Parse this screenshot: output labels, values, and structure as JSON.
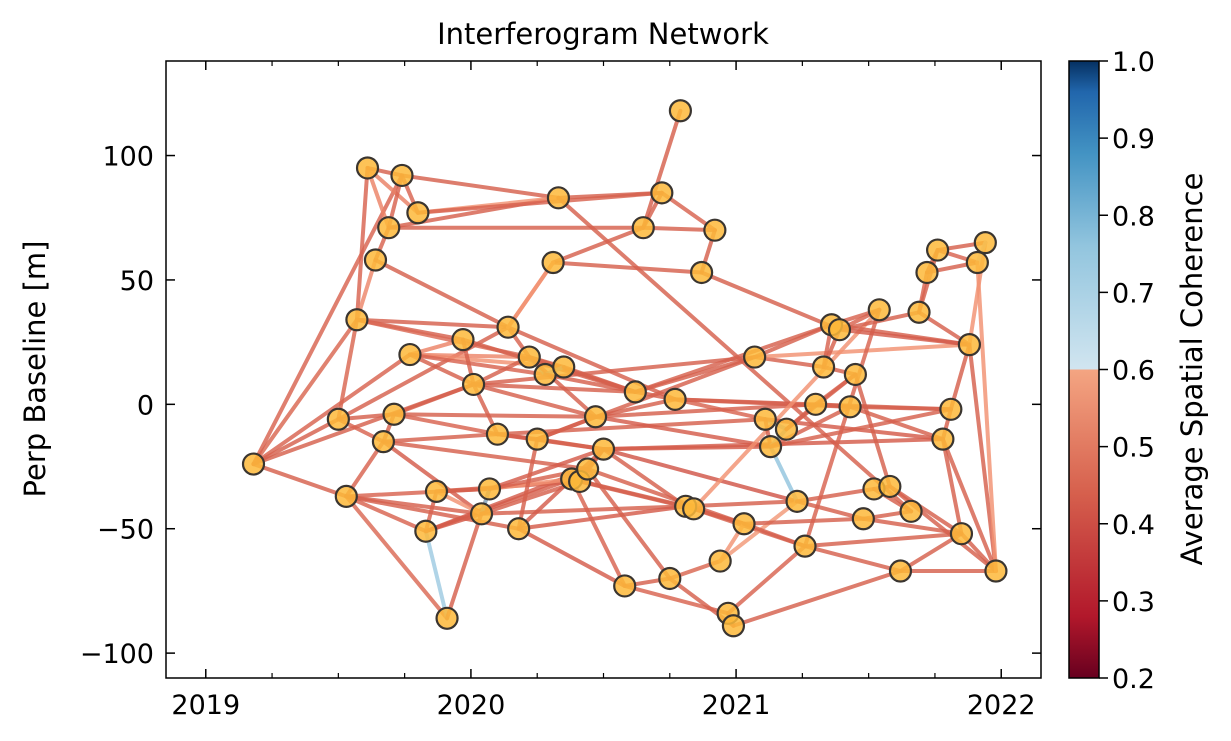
{
  "chart_data": {
    "type": "scatter",
    "title": "Interferogram Network",
    "xlabel": "",
    "ylabel": "Perp Baseline [m]",
    "xlim": [
      2018.85,
      2022.15
    ],
    "ylim": [
      -110,
      138
    ],
    "xticks": [
      2019,
      2020,
      2021,
      2022
    ],
    "xtick_labels": [
      "2019",
      "2020",
      "2021",
      "2022"
    ],
    "yticks": [
      -100,
      -50,
      0,
      50,
      100
    ],
    "ytick_labels": [
      "−100",
      "−50",
      "0",
      "50",
      "100"
    ],
    "grid": false,
    "colorbar": {
      "label": "Average Spatial Coherence",
      "range": [
        0.2,
        1.0
      ],
      "ticks": [
        0.2,
        0.3,
        0.4,
        0.5,
        0.6,
        0.7,
        0.8,
        0.9,
        1.0
      ],
      "tick_labels": [
        "0.2",
        "0.3",
        "0.4",
        "0.5",
        "0.6",
        "0.7",
        "0.8",
        "0.9",
        "1.0"
      ],
      "colormap": "RdBu"
    },
    "marker_color": "#fdb93a",
    "marker_edge_color": "#3a3530",
    "acquisitions": [
      {
        "date": 2019.18,
        "bperp": -24
      },
      {
        "date": 2019.5,
        "bperp": -6
      },
      {
        "date": 2019.53,
        "bperp": -37
      },
      {
        "date": 2019.57,
        "bperp": 34
      },
      {
        "date": 2019.61,
        "bperp": 95
      },
      {
        "date": 2019.64,
        "bperp": 58
      },
      {
        "date": 2019.67,
        "bperp": -15
      },
      {
        "date": 2019.69,
        "bperp": 71
      },
      {
        "date": 2019.71,
        "bperp": -4
      },
      {
        "date": 2019.74,
        "bperp": 92
      },
      {
        "date": 2019.77,
        "bperp": 20
      },
      {
        "date": 2019.8,
        "bperp": 77
      },
      {
        "date": 2019.83,
        "bperp": -51
      },
      {
        "date": 2019.87,
        "bperp": -35
      },
      {
        "date": 2019.91,
        "bperp": -86
      },
      {
        "date": 2019.97,
        "bperp": 26
      },
      {
        "date": 2020.01,
        "bperp": 8
      },
      {
        "date": 2020.04,
        "bperp": -44
      },
      {
        "date": 2020.07,
        "bperp": -34
      },
      {
        "date": 2020.1,
        "bperp": -12
      },
      {
        "date": 2020.14,
        "bperp": 31
      },
      {
        "date": 2020.18,
        "bperp": -50
      },
      {
        "date": 2020.22,
        "bperp": 19
      },
      {
        "date": 2020.25,
        "bperp": -14
      },
      {
        "date": 2020.28,
        "bperp": 12
      },
      {
        "date": 2020.31,
        "bperp": 57
      },
      {
        "date": 2020.33,
        "bperp": 83
      },
      {
        "date": 2020.35,
        "bperp": 15
      },
      {
        "date": 2020.38,
        "bperp": -30
      },
      {
        "date": 2020.41,
        "bperp": -31
      },
      {
        "date": 2020.44,
        "bperp": -26
      },
      {
        "date": 2020.47,
        "bperp": -5
      },
      {
        "date": 2020.5,
        "bperp": -18
      },
      {
        "date": 2020.58,
        "bperp": -73
      },
      {
        "date": 2020.62,
        "bperp": 5
      },
      {
        "date": 2020.65,
        "bperp": 71
      },
      {
        "date": 2020.72,
        "bperp": 85
      },
      {
        "date": 2020.75,
        "bperp": -70
      },
      {
        "date": 2020.77,
        "bperp": 2
      },
      {
        "date": 2020.79,
        "bperp": 118
      },
      {
        "date": 2020.81,
        "bperp": -41
      },
      {
        "date": 2020.84,
        "bperp": -42
      },
      {
        "date": 2020.87,
        "bperp": 53
      },
      {
        "date": 2020.92,
        "bperp": 70
      },
      {
        "date": 2020.94,
        "bperp": -63
      },
      {
        "date": 2020.97,
        "bperp": -84
      },
      {
        "date": 2020.99,
        "bperp": -89
      },
      {
        "date": 2021.03,
        "bperp": -48
      },
      {
        "date": 2021.07,
        "bperp": 19
      },
      {
        "date": 2021.11,
        "bperp": -6
      },
      {
        "date": 2021.13,
        "bperp": -17
      },
      {
        "date": 2021.19,
        "bperp": -10
      },
      {
        "date": 2021.23,
        "bperp": -39
      },
      {
        "date": 2021.26,
        "bperp": -57
      },
      {
        "date": 2021.3,
        "bperp": 0
      },
      {
        "date": 2021.33,
        "bperp": 15
      },
      {
        "date": 2021.36,
        "bperp": 32
      },
      {
        "date": 2021.39,
        "bperp": 30
      },
      {
        "date": 2021.43,
        "bperp": -1
      },
      {
        "date": 2021.45,
        "bperp": 12
      },
      {
        "date": 2021.48,
        "bperp": -46
      },
      {
        "date": 2021.52,
        "bperp": -34
      },
      {
        "date": 2021.54,
        "bperp": 38
      },
      {
        "date": 2021.58,
        "bperp": -33
      },
      {
        "date": 2021.62,
        "bperp": -67
      },
      {
        "date": 2021.66,
        "bperp": -43
      },
      {
        "date": 2021.69,
        "bperp": 37
      },
      {
        "date": 2021.72,
        "bperp": 53
      },
      {
        "date": 2021.76,
        "bperp": 62
      },
      {
        "date": 2021.78,
        "bperp": -14
      },
      {
        "date": 2021.81,
        "bperp": -2
      },
      {
        "date": 2021.85,
        "bperp": -52
      },
      {
        "date": 2021.88,
        "bperp": 24
      },
      {
        "date": 2021.91,
        "bperp": 57
      },
      {
        "date": 2021.94,
        "bperp": 65
      },
      {
        "date": 2021.98,
        "bperp": -67
      }
    ],
    "pairs": [
      [
        0,
        1,
        0.45
      ],
      [
        0,
        2,
        0.45
      ],
      [
        0,
        3,
        0.47
      ],
      [
        0,
        9,
        0.46
      ],
      [
        0,
        10,
        0.46
      ],
      [
        0,
        16,
        0.45
      ],
      [
        1,
        3,
        0.47
      ],
      [
        1,
        6,
        0.46
      ],
      [
        1,
        8,
        0.45
      ],
      [
        1,
        20,
        0.45
      ],
      [
        2,
        6,
        0.46
      ],
      [
        2,
        12,
        0.46
      ],
      [
        2,
        14,
        0.48
      ],
      [
        2,
        17,
        0.45
      ],
      [
        2,
        18,
        0.46
      ],
      [
        2,
        21,
        0.45
      ],
      [
        3,
        4,
        0.46
      ],
      [
        3,
        5,
        0.58
      ],
      [
        3,
        15,
        0.45
      ],
      [
        3,
        20,
        0.45
      ],
      [
        3,
        22,
        0.48
      ],
      [
        4,
        7,
        0.57
      ],
      [
        4,
        11,
        0.56
      ],
      [
        4,
        9,
        0.45
      ],
      [
        5,
        7,
        0.46
      ],
      [
        5,
        20,
        0.45
      ],
      [
        6,
        8,
        0.45
      ],
      [
        6,
        19,
        0.45
      ],
      [
        6,
        17,
        0.44
      ],
      [
        6,
        30,
        0.45
      ],
      [
        7,
        26,
        0.45
      ],
      [
        7,
        9,
        0.46
      ],
      [
        7,
        35,
        0.45
      ],
      [
        8,
        16,
        0.45
      ],
      [
        8,
        19,
        0.46
      ],
      [
        8,
        31,
        0.45
      ],
      [
        9,
        11,
        0.46
      ],
      [
        9,
        26,
        0.45
      ],
      [
        10,
        15,
        0.57
      ],
      [
        10,
        27,
        0.62
      ],
      [
        10,
        22,
        0.58
      ],
      [
        10,
        16,
        0.45
      ],
      [
        10,
        24,
        0.46
      ],
      [
        11,
        26,
        0.63
      ],
      [
        11,
        36,
        0.46
      ],
      [
        12,
        13,
        0.46
      ],
      [
        12,
        14,
        0.78
      ],
      [
        12,
        17,
        0.44
      ],
      [
        12,
        28,
        0.45
      ],
      [
        12,
        30,
        0.44
      ],
      [
        13,
        18,
        0.45
      ],
      [
        13,
        17,
        0.62
      ],
      [
        13,
        29,
        0.45
      ],
      [
        14,
        18,
        0.45
      ],
      [
        15,
        16,
        0.45
      ],
      [
        15,
        34,
        0.45
      ],
      [
        16,
        19,
        0.45
      ],
      [
        16,
        22,
        0.45
      ],
      [
        16,
        31,
        0.45
      ],
      [
        16,
        34,
        0.45
      ],
      [
        16,
        48,
        0.45
      ],
      [
        17,
        18,
        0.82
      ],
      [
        17,
        29,
        0.45
      ],
      [
        17,
        40,
        0.45
      ],
      [
        18,
        28,
        0.62
      ],
      [
        18,
        30,
        0.45
      ],
      [
        18,
        32,
        0.44
      ],
      [
        19,
        23,
        0.45
      ],
      [
        19,
        32,
        0.44
      ],
      [
        19,
        49,
        0.45
      ],
      [
        20,
        22,
        0.46
      ],
      [
        20,
        25,
        0.62
      ],
      [
        20,
        38,
        0.45
      ],
      [
        21,
        23,
        0.45
      ],
      [
        21,
        33,
        0.44
      ],
      [
        21,
        32,
        0.44
      ],
      [
        21,
        40,
        0.44
      ],
      [
        22,
        24,
        0.83
      ],
      [
        22,
        27,
        0.47
      ],
      [
        22,
        31,
        0.45
      ],
      [
        22,
        34,
        0.45
      ],
      [
        23,
        31,
        0.45
      ],
      [
        23,
        48,
        0.45
      ],
      [
        23,
        32,
        0.45
      ],
      [
        24,
        27,
        0.82
      ],
      [
        24,
        34,
        0.45
      ],
      [
        25,
        35,
        0.45
      ],
      [
        25,
        42,
        0.45
      ],
      [
        25,
        20,
        0.62
      ],
      [
        26,
        36,
        0.45
      ],
      [
        26,
        65,
        0.45
      ],
      [
        27,
        34,
        0.45
      ],
      [
        28,
        30,
        0.45
      ],
      [
        28,
        40,
        0.45
      ],
      [
        28,
        33,
        0.46
      ],
      [
        29,
        32,
        0.45
      ],
      [
        29,
        41,
        0.45
      ],
      [
        30,
        32,
        0.45
      ],
      [
        30,
        47,
        0.45
      ],
      [
        30,
        37,
        0.45
      ],
      [
        31,
        38,
        0.45
      ],
      [
        31,
        50,
        0.44
      ],
      [
        31,
        54,
        0.45
      ],
      [
        32,
        50,
        0.44
      ],
      [
        32,
        40,
        0.45
      ],
      [
        32,
        69,
        0.44
      ],
      [
        32,
        52,
        0.43
      ],
      [
        33,
        37,
        0.45
      ],
      [
        33,
        45,
        0.46
      ],
      [
        34,
        38,
        0.45
      ],
      [
        34,
        48,
        0.45
      ],
      [
        34,
        56,
        0.45
      ],
      [
        35,
        36,
        0.45
      ],
      [
        35,
        39,
        0.45
      ],
      [
        35,
        43,
        0.45
      ],
      [
        36,
        43,
        0.46
      ],
      [
        37,
        44,
        0.47
      ],
      [
        37,
        46,
        0.45
      ],
      [
        38,
        49,
        0.46
      ],
      [
        38,
        58,
        0.45
      ],
      [
        38,
        70,
        0.45
      ],
      [
        40,
        41,
        0.46
      ],
      [
        40,
        47,
        0.45
      ],
      [
        40,
        52,
        0.45
      ],
      [
        41,
        47,
        0.45
      ],
      [
        41,
        62,
        0.62
      ],
      [
        41,
        53,
        0.45
      ],
      [
        42,
        57,
        0.45
      ],
      [
        42,
        43,
        0.45
      ],
      [
        44,
        47,
        0.63
      ],
      [
        44,
        52,
        0.65
      ],
      [
        45,
        46,
        0.45
      ],
      [
        45,
        53,
        0.46
      ],
      [
        46,
        64,
        0.45
      ],
      [
        47,
        53,
        0.45
      ],
      [
        47,
        60,
        0.45
      ],
      [
        48,
        55,
        0.45
      ],
      [
        48,
        72,
        0.62
      ],
      [
        48,
        56,
        0.45
      ],
      [
        49,
        51,
        0.8
      ],
      [
        49,
        50,
        0.45
      ],
      [
        49,
        69,
        0.44
      ],
      [
        50,
        52,
        0.8
      ],
      [
        50,
        51,
        0.8
      ],
      [
        50,
        58,
        0.45
      ],
      [
        50,
        70,
        0.45
      ],
      [
        51,
        54,
        0.45
      ],
      [
        51,
        59,
        0.45
      ],
      [
        52,
        61,
        0.45
      ],
      [
        52,
        60,
        0.45
      ],
      [
        53,
        62,
        0.46
      ],
      [
        53,
        71,
        0.45
      ],
      [
        53,
        64,
        0.45
      ],
      [
        54,
        59,
        0.46
      ],
      [
        54,
        58,
        0.45
      ],
      [
        55,
        57,
        0.45
      ],
      [
        55,
        59,
        0.45
      ],
      [
        55,
        56,
        0.46
      ],
      [
        56,
        62,
        0.46
      ],
      [
        56,
        72,
        0.45
      ],
      [
        57,
        62,
        0.46
      ],
      [
        57,
        72,
        0.44
      ],
      [
        57,
        66,
        0.45
      ],
      [
        58,
        69,
        0.45
      ],
      [
        58,
        70,
        0.45
      ],
      [
        59,
        63,
        0.45
      ],
      [
        60,
        65,
        0.45
      ],
      [
        60,
        71,
        0.45
      ],
      [
        61,
        63,
        0.46
      ],
      [
        61,
        65,
        0.45
      ],
      [
        63,
        71,
        0.45
      ],
      [
        63,
        75,
        0.45
      ],
      [
        64,
        75,
        0.45
      ],
      [
        64,
        71,
        0.45
      ],
      [
        66,
        68,
        0.45
      ],
      [
        66,
        67,
        0.46
      ],
      [
        66,
        72,
        0.45
      ],
      [
        67,
        68,
        0.45
      ],
      [
        67,
        73,
        0.45
      ],
      [
        68,
        74,
        0.45
      ],
      [
        68,
        73,
        0.46
      ],
      [
        69,
        71,
        0.45
      ],
      [
        69,
        75,
        0.45
      ],
      [
        70,
        72,
        0.45
      ],
      [
        70,
        69,
        0.45
      ],
      [
        71,
        75,
        0.45
      ],
      [
        72,
        74,
        0.62
      ],
      [
        72,
        75,
        0.45
      ],
      [
        73,
        74,
        0.72
      ],
      [
        73,
        75,
        0.62
      ]
    ]
  }
}
